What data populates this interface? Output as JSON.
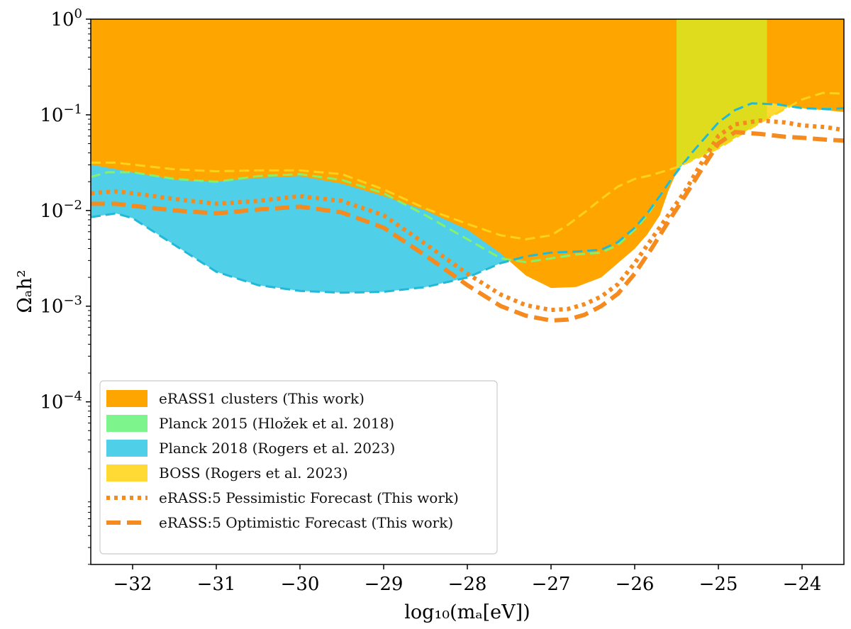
{
  "chart_data": {
    "type": "area",
    "title": "",
    "xlabel": "log₁₀(mₐ[eV])",
    "ylabel": "Ωₐh²",
    "xlim": [
      -32.5,
      -23.5
    ],
    "ylim_log10": [
      -5.7,
      0
    ],
    "yscale": "log",
    "xticks": [
      -32,
      -31,
      -30,
      -29,
      -28,
      -27,
      -26,
      -25,
      -24
    ],
    "xtick_labels": [
      "−32",
      "−31",
      "−30",
      "−29",
      "−28",
      "−27",
      "−26",
      "−25",
      "−24"
    ],
    "yticks_log10": [
      0,
      -1,
      -2,
      -3,
      -4
    ],
    "ytick_labels": [
      {
        "base": "10",
        "exp": "0"
      },
      {
        "base": "10",
        "exp": "−1"
      },
      {
        "base": "10",
        "exp": "−2"
      },
      {
        "base": "10",
        "exp": "−3"
      },
      {
        "base": "10",
        "exp": "−4"
      }
    ],
    "legend_position": "bottom-left",
    "series": [
      {
        "name": "eRASS1 clusters (This work)",
        "kind": "region",
        "color": "#ffa500",
        "boundary_x": [
          -32.5,
          -32.0,
          -31.5,
          -31.0,
          -30.5,
          -30.0,
          -29.5,
          -29.0,
          -28.5,
          -28.0,
          -27.6,
          -27.3,
          -27.0,
          -26.7,
          -26.4,
          -26.2,
          -26.0,
          -25.85,
          -25.7,
          -25.6,
          -25.5,
          -25.5,
          -24.42,
          -24.42,
          -24.0,
          -23.5
        ],
        "boundary_log10_y": [
          -1.52,
          -1.6,
          -1.68,
          -1.7,
          -1.66,
          -1.64,
          -1.72,
          -1.85,
          -2.0,
          -2.2,
          -2.45,
          -2.68,
          -2.81,
          -2.8,
          -2.7,
          -2.55,
          -2.4,
          -2.25,
          -2.05,
          -1.8,
          -1.6,
          0.0,
          0.0,
          -0.87,
          -0.93,
          -0.97
        ]
      },
      {
        "name": "Planck 2015 (Hložek et al. 2018)",
        "kind": "region",
        "color": "#7df58c",
        "boundary_x": [
          -32.5,
          -32.3,
          -32.0,
          -31.5,
          -31.0,
          -30.5,
          -30.0,
          -29.5,
          -29.0,
          -28.5,
          -28.0,
          -27.6,
          -27.3,
          -27.0,
          -26.7,
          -26.4,
          -26.2,
          -26.0,
          -25.85,
          -25.7,
          -25.6,
          -25.5,
          -25.3,
          -25.0,
          -24.8,
          -24.6,
          -24.3,
          -24.0,
          -23.7,
          -23.5
        ],
        "boundary_log10_y": [
          -1.65,
          -1.6,
          -1.6,
          -1.67,
          -1.7,
          -1.64,
          -1.62,
          -1.68,
          -1.82,
          -2.05,
          -2.3,
          -2.5,
          -2.54,
          -2.5,
          -2.46,
          -2.44,
          -2.36,
          -2.2,
          -2.05,
          -1.85,
          -1.72,
          -1.6,
          -1.38,
          -1.08,
          -0.95,
          -0.88,
          -0.89,
          -0.93,
          -0.94,
          -0.93
        ]
      },
      {
        "name": "Planck 2018 (Rogers et al. 2023)",
        "kind": "region",
        "color": "#4fd0e8",
        "boundary_x": [
          -32.5,
          -32.2,
          -32.0,
          -31.5,
          -31.0,
          -30.5,
          -30.0,
          -29.5,
          -29.0,
          -28.5,
          -28.0,
          -27.6,
          -27.3,
          -27.0,
          -26.7,
          -26.4,
          -26.2,
          -26.0,
          -25.85,
          -25.7,
          -25.6,
          -25.5,
          -25.3,
          -25.0,
          -24.8,
          -24.6,
          -24.3,
          -24.0,
          -23.7,
          -23.5
        ],
        "boundary_log10_y": [
          -2.07,
          -2.03,
          -2.08,
          -2.36,
          -2.64,
          -2.78,
          -2.84,
          -2.86,
          -2.85,
          -2.8,
          -2.7,
          -2.55,
          -2.48,
          -2.44,
          -2.43,
          -2.41,
          -2.33,
          -2.18,
          -2.03,
          -1.85,
          -1.72,
          -1.6,
          -1.38,
          -1.08,
          -0.95,
          -0.88,
          -0.89,
          -0.93,
          -0.94,
          -0.93
        ]
      },
      {
        "name": "BOSS (Rogers et al. 2023)",
        "kind": "region",
        "color": "#ffd934",
        "boundary_x": [
          -32.5,
          -32.2,
          -32.0,
          -31.5,
          -31.0,
          -30.5,
          -30.0,
          -29.5,
          -29.0,
          -28.5,
          -28.0,
          -27.6,
          -27.3,
          -27.0,
          -26.8,
          -26.6,
          -26.4,
          -26.2,
          -26.0,
          -25.8,
          -25.5,
          -25.0,
          -24.5,
          -24.0,
          -23.75,
          -23.5
        ],
        "boundary_log10_y": [
          -1.5,
          -1.5,
          -1.52,
          -1.57,
          -1.59,
          -1.58,
          -1.58,
          -1.62,
          -1.78,
          -1.98,
          -2.14,
          -2.26,
          -2.3,
          -2.26,
          -2.15,
          -2.02,
          -1.88,
          -1.75,
          -1.67,
          -1.63,
          -1.55,
          -1.35,
          -1.08,
          -0.84,
          -0.77,
          -0.78
        ]
      },
      {
        "name": "eRASS:5 Pessimistic Forecast (This work)",
        "kind": "curve",
        "style": "dotted",
        "color": "#f58a1f",
        "x": [
          -32.5,
          -32.2,
          -32.0,
          -31.5,
          -31.0,
          -30.5,
          -30.0,
          -29.5,
          -29.0,
          -28.5,
          -28.0,
          -27.6,
          -27.3,
          -27.0,
          -26.8,
          -26.6,
          -26.4,
          -26.2,
          -26.0,
          -25.8,
          -25.6,
          -25.4,
          -25.2,
          -25.0,
          -24.8,
          -24.5,
          -24.2,
          -24.0,
          -23.7,
          -23.5
        ],
        "log10_y": [
          -1.82,
          -1.8,
          -1.82,
          -1.88,
          -1.93,
          -1.9,
          -1.85,
          -1.9,
          -2.05,
          -2.35,
          -2.66,
          -2.88,
          -2.99,
          -3.04,
          -3.03,
          -2.98,
          -2.9,
          -2.77,
          -2.55,
          -2.3,
          -2.05,
          -1.8,
          -1.5,
          -1.22,
          -1.1,
          -1.06,
          -1.08,
          -1.11,
          -1.13,
          -1.16
        ]
      },
      {
        "name": "eRASS:5 Optimistic Forecast (This work)",
        "kind": "curve",
        "style": "dashed",
        "color": "#f58a1f",
        "x": [
          -32.5,
          -32.2,
          -32.0,
          -31.5,
          -31.0,
          -30.5,
          -30.0,
          -29.5,
          -29.0,
          -28.5,
          -28.0,
          -27.6,
          -27.3,
          -27.0,
          -26.8,
          -26.6,
          -26.4,
          -26.2,
          -26.0,
          -25.8,
          -25.6,
          -25.4,
          -25.2,
          -25.0,
          -24.8,
          -24.5,
          -24.2,
          -24.0,
          -23.7,
          -23.5
        ],
        "log10_y": [
          -1.93,
          -1.93,
          -1.95,
          -2.0,
          -2.03,
          -1.99,
          -1.96,
          -2.02,
          -2.18,
          -2.47,
          -2.78,
          -3.0,
          -3.1,
          -3.15,
          -3.14,
          -3.09,
          -3.0,
          -2.87,
          -2.66,
          -2.4,
          -2.12,
          -1.85,
          -1.57,
          -1.3,
          -1.18,
          -1.2,
          -1.23,
          -1.24,
          -1.26,
          -1.27
        ]
      }
    ]
  }
}
